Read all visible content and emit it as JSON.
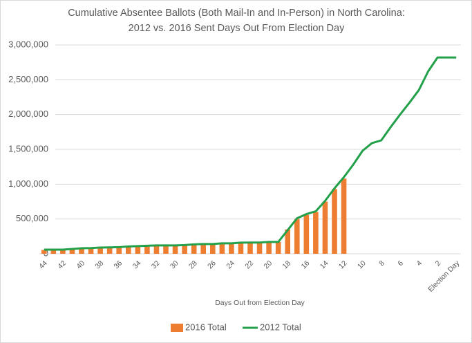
{
  "chart_data": {
    "type": "bar_line",
    "title_lines": [
      "Cumulative Absentee Ballots (Both Mail-In and In-Person) in North Carolina:",
      "2012 vs. 2016 Sent Days Out From Election Day"
    ],
    "x_label": "Days Out from Election Day",
    "categories": [
      "44",
      null,
      "42",
      null,
      "40",
      null,
      "38",
      null,
      "36",
      null,
      "34",
      null,
      "32",
      null,
      "30",
      null,
      "28",
      null,
      "26",
      null,
      "24",
      null,
      "22",
      null,
      "20",
      null,
      "18",
      null,
      "16",
      null,
      "14",
      null,
      "12",
      null,
      "10",
      null,
      "8",
      null,
      "6",
      null,
      "4",
      null,
      "2",
      null,
      "Election Day"
    ],
    "series": [
      {
        "name": "2016 Total",
        "kind": "bar",
        "color": "#ed7d31",
        "values": [
          55000,
          57000,
          60000,
          65000,
          75000,
          78000,
          85000,
          88000,
          90000,
          100000,
          105000,
          110000,
          115000,
          117000,
          120000,
          122000,
          130000,
          135000,
          140000,
          145000,
          150000,
          155000,
          158000,
          160000,
          165000,
          170000,
          350000,
          500000,
          560000,
          600000,
          750000,
          930000,
          1080000,
          null,
          null,
          null,
          null,
          null,
          null,
          null,
          null,
          null,
          null,
          null,
          null
        ]
      },
      {
        "name": "2012 Total",
        "kind": "line",
        "color": "#23a04a",
        "values": [
          60000,
          60000,
          60000,
          70000,
          80000,
          82000,
          90000,
          92000,
          95000,
          105000,
          110000,
          115000,
          120000,
          120000,
          120000,
          125000,
          135000,
          140000,
          140000,
          150000,
          150000,
          160000,
          162000,
          162000,
          170000,
          170000,
          340000,
          510000,
          570000,
          610000,
          760000,
          940000,
          1100000,
          1280000,
          1480000,
          1590000,
          1630000,
          1820000,
          2000000,
          2170000,
          2350000,
          2620000,
          2820000,
          2820000,
          2820000
        ]
      }
    ],
    "ylim": [
      0,
      3000000
    ],
    "yticks": [
      0,
      {
        "value": 500000,
        "label": "500,000"
      },
      {
        "value": 1000000,
        "label": "1,000,000"
      },
      {
        "value": 1500000,
        "label": "1,500,000"
      },
      {
        "value": 2000000,
        "label": "2,000,000"
      },
      {
        "value": 2500000,
        "label": "2,500,000"
      },
      {
        "value": 3000000,
        "label": "3,000,000"
      }
    ],
    "grid": true,
    "legend": "bottom"
  }
}
